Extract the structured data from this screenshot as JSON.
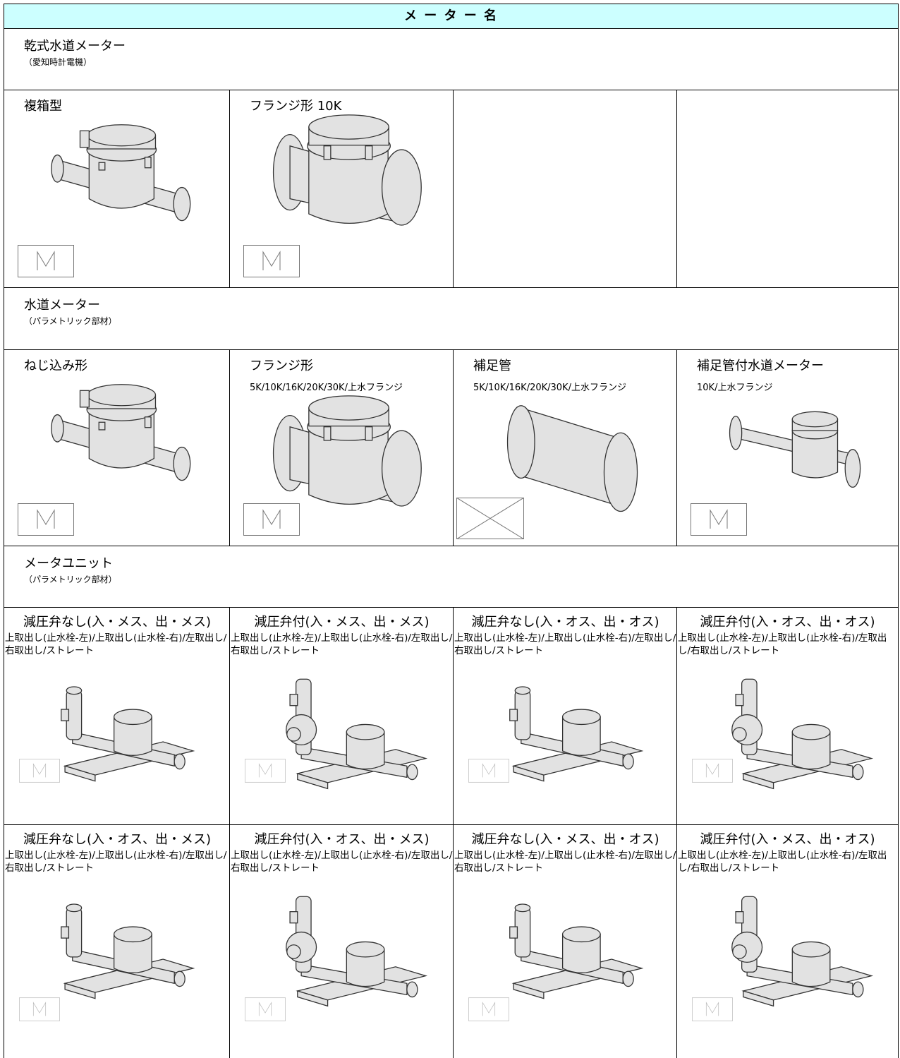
{
  "header": {
    "title": "メ ー タ ー 名"
  },
  "sections": [
    {
      "title": "乾式水道メーター",
      "subtitle": "（愛知時計電機）",
      "rows": [
        [
          {
            "title": "複箱型"
          },
          {
            "title": "フランジ形 10K"
          }
        ]
      ]
    },
    {
      "title": "水道メーター",
      "subtitle": "（パラメトリック部材）",
      "rows": [
        [
          {
            "title": "ねじ込み形"
          },
          {
            "title": "フランジ形",
            "subtitle": "5K/10K/16K/20K/30K/上水フランジ"
          },
          {
            "title": "補足管",
            "subtitle": "5K/10K/16K/20K/30K/上水フランジ"
          },
          {
            "title": "補足管付水道メーター",
            "subtitle": "10K/上水フランジ"
          }
        ]
      ]
    },
    {
      "title": "メータユニット",
      "subtitle": "（パラメトリック部材）",
      "rows": [
        [
          {
            "title": "減圧弁なし(入・メス、出・メス)",
            "subtitle": "上取出し(止水栓-左)/上取出し(止水栓-右)/左取出し/右取出し/ストレート"
          },
          {
            "title": "減圧弁付(入・メス、出・メス)",
            "subtitle": "上取出し(止水栓-左)/上取出し(止水栓-右)/左取出し/右取出し/ストレート"
          },
          {
            "title": "減圧弁なし(入・オス、出・オス)",
            "subtitle": "上取出し(止水栓-左)/上取出し(止水栓-右)/左取出し/右取出し/ストレート"
          },
          {
            "title": "減圧弁付(入・オス、出・オス)",
            "subtitle": "上取出し(止水栓-左)/上取出し(止水栓-右)/左取出し/右取出し/ストレート"
          }
        ],
        [
          {
            "title": "減圧弁なし(入・オス、出・メス)",
            "subtitle": "上取出し(止水栓-左)/上取出し(止水栓-右)/左取出し/右取出し/ストレート"
          },
          {
            "title": "減圧弁付(入・オス、出・メス)",
            "subtitle": "上取出し(止水栓-左)/上取出し(止水栓-右)/左取出し/右取出し/ストレート"
          },
          {
            "title": "減圧弁なし(入・メス、出・オス)",
            "subtitle": "上取出し(止水栓-左)/上取出し(止水栓-右)/左取出し/右取出し/ストレート"
          },
          {
            "title": "減圧弁付(入・メス、出・オス)",
            "subtitle": "上取出し(止水栓-左)/上取出し(止水栓-右)/左取出し/右取出し/ストレート"
          }
        ]
      ]
    }
  ]
}
